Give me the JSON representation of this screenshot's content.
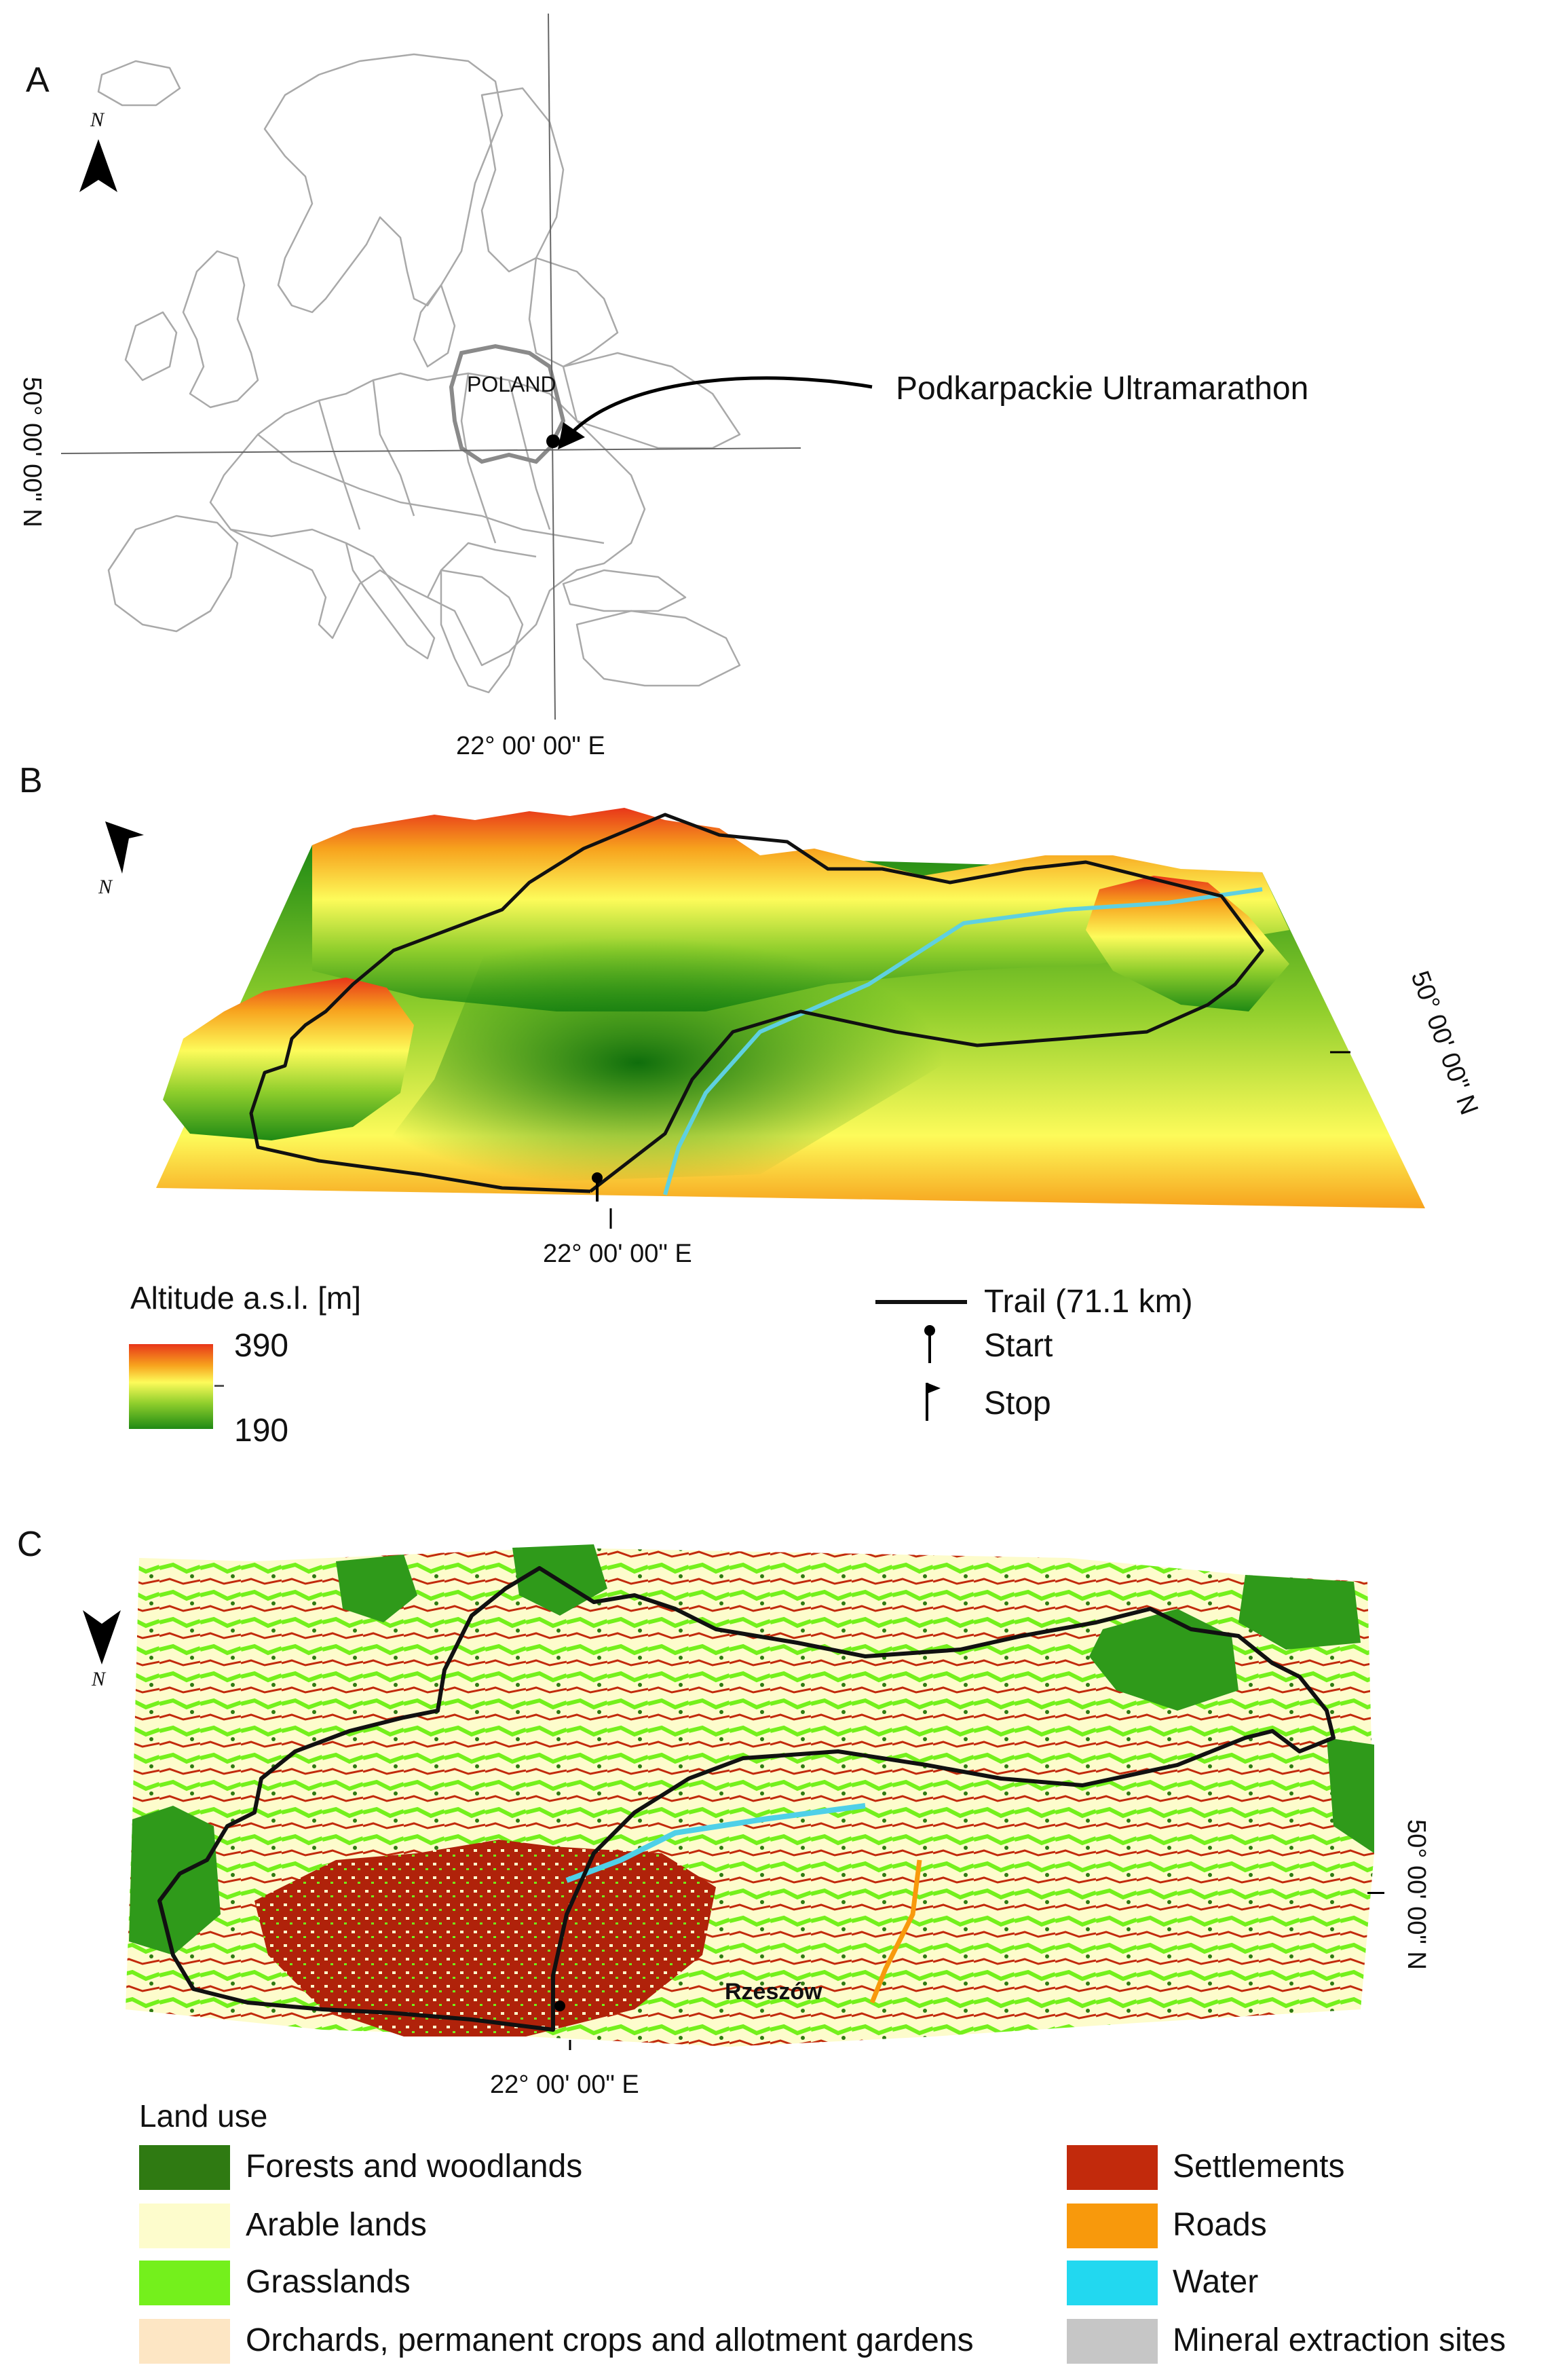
{
  "panels": {
    "a": {
      "letter": "A",
      "north_label": "N",
      "country_label": "POLAND",
      "callout": "Podkarpackie Ultramarathon",
      "lat_label": "50° 00' 00\" N",
      "lon_label": "22° 00' 00\" E"
    },
    "b": {
      "letter": "B",
      "north_label": "N",
      "lat_label": "50° 00' 00\" N",
      "lon_label": "22° 00' 00\" E",
      "altitude_legend": {
        "title": "Altitude a.s.l. [m]",
        "max": "390",
        "min": "190",
        "colors": [
          "#e8361a",
          "#f7a21d",
          "#fdfb5a",
          "#8fce2c",
          "#1f8a14"
        ]
      },
      "trail_legend": {
        "trail": "Trail (71.1 km)",
        "start": "Start",
        "stop": "Stop"
      }
    },
    "c": {
      "letter": "C",
      "north_label": "N",
      "lat_label": "50° 00' 00\" N",
      "lon_label": "22° 00' 00\" E",
      "city_label": "Rzeszów",
      "land_use": {
        "title": "Land use",
        "items": [
          {
            "label": "Forests and woodlands",
            "color": "#2f7a12"
          },
          {
            "label": "Arable lands",
            "color": "#fdfccc"
          },
          {
            "label": "Grasslands",
            "color": "#74f01c"
          },
          {
            "label": "Orchards, permanent crops and allotment gardens",
            "color": "#fde6c4"
          },
          {
            "label": "Settlements",
            "color": "#c22a0c"
          },
          {
            "label": "Roads",
            "color": "#f8990c"
          },
          {
            "label": "Water",
            "color": "#22d8f0"
          },
          {
            "label": "Mineral extraction sites",
            "color": "#c6c6c6"
          }
        ]
      }
    }
  }
}
